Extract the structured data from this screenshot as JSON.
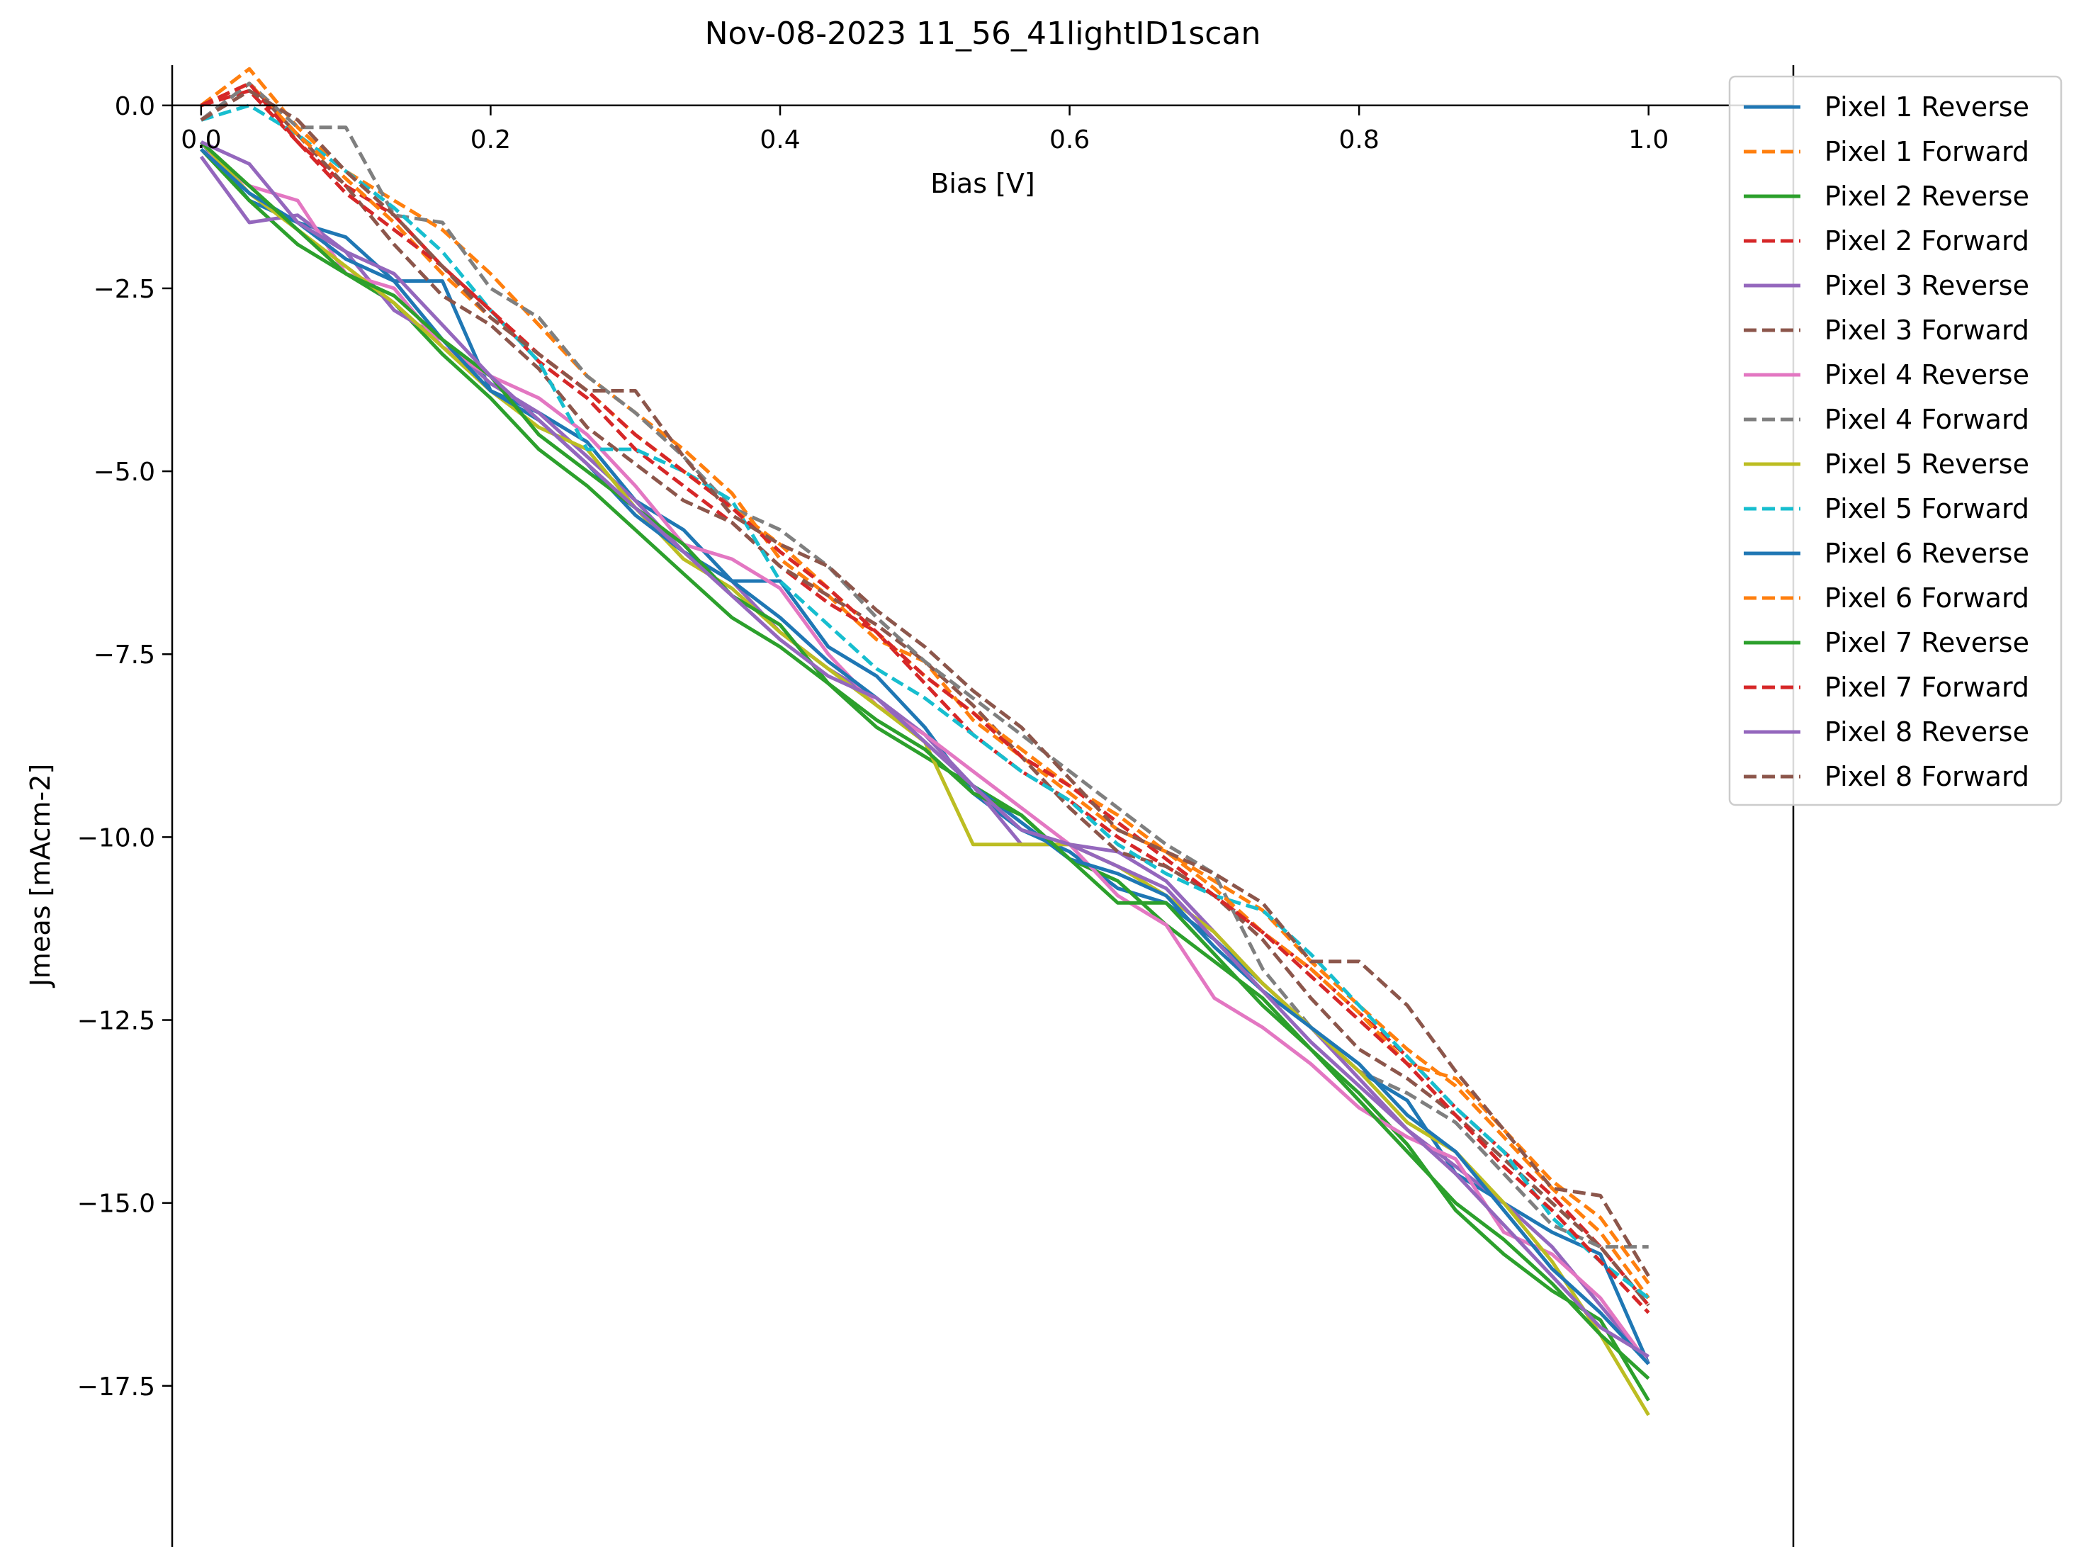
{
  "chart_data": {
    "type": "line",
    "title": "Nov-08-2023 11_56_41lightID1scan",
    "xlabel": "Bias [V]",
    "ylabel": "Jmeas [mAcm-2]",
    "xlim": [
      -0.02,
      1.1
    ],
    "ylim": [
      -19.7,
      0.55
    ],
    "x_ticks": [
      0.0,
      0.2,
      0.4,
      0.6,
      0.8,
      1.0
    ],
    "x_tick_labels": [
      "0.0",
      "0.2",
      "0.4",
      "0.6",
      "0.8",
      "1.0"
    ],
    "y_ticks": [
      0.0,
      -2.5,
      -5.0,
      -7.5,
      -10.0,
      -12.5,
      -15.0,
      -17.5
    ],
    "y_tick_labels": [
      "0.0",
      "−2.5",
      "−5.0",
      "−7.5",
      "−10.0",
      "−12.5",
      "−15.0",
      "−17.5"
    ],
    "x_axis_position": "y=0",
    "grid": false,
    "legend_position": "upper-right-outside",
    "x": [
      0.0,
      0.0333,
      0.0667,
      0.1,
      0.1333,
      0.1667,
      0.2,
      0.2333,
      0.2667,
      0.3,
      0.3333,
      0.3667,
      0.4,
      0.4333,
      0.4667,
      0.5,
      0.5333,
      0.5667,
      0.6,
      0.6333,
      0.6667,
      0.7,
      0.7333,
      0.7667,
      0.8,
      0.8333,
      0.8667,
      0.9,
      0.9333,
      0.9667,
      1.0
    ],
    "series": [
      {
        "name": "Pixel 1 Reverse",
        "color": "#1f77b4",
        "dash": "solid",
        "y": [
          -0.5,
          -1.3,
          -1.6,
          -1.8,
          -2.4,
          -2.4,
          -3.9,
          -4.2,
          -4.6,
          -5.4,
          -5.8,
          -6.5,
          -6.5,
          -7.4,
          -7.8,
          -8.5,
          -9.4,
          -9.9,
          -10.2,
          -10.7,
          -10.9,
          -11.4,
          -12.0,
          -12.6,
          -13.2,
          -13.6,
          -14.6,
          -15.0,
          -15.4,
          -15.7,
          -17.2
        ]
      },
      {
        "name": "Pixel 1 Forward",
        "color": "#ff7f0e",
        "dash": "dash",
        "y": [
          0.0,
          0.5,
          -0.3,
          -0.9,
          -1.3,
          -1.7,
          -2.3,
          -3.0,
          -3.7,
          -4.2,
          -4.7,
          -5.3,
          -6.2,
          -6.7,
          -7.3,
          -7.6,
          -8.4,
          -8.9,
          -9.4,
          -9.9,
          -10.2,
          -10.6,
          -11.0,
          -11.7,
          -12.3,
          -12.9,
          -13.4,
          -14.1,
          -14.8,
          -15.4,
          -16.3
        ]
      },
      {
        "name": "Pixel 2 Reverse",
        "color": "#2ca02c",
        "dash": "solid",
        "y": [
          -0.6,
          -1.3,
          -1.9,
          -2.3,
          -2.7,
          -3.4,
          -4.0,
          -4.7,
          -5.2,
          -5.8,
          -6.4,
          -7.0,
          -7.4,
          -7.9,
          -8.5,
          -8.9,
          -9.3,
          -9.7,
          -10.3,
          -10.6,
          -11.2,
          -11.7,
          -12.2,
          -12.9,
          -13.5,
          -14.2,
          -15.1,
          -15.7,
          -16.2,
          -16.6,
          -17.7
        ]
      },
      {
        "name": "Pixel 2 Forward",
        "color": "#d62728",
        "dash": "dash",
        "y": [
          0.0,
          0.2,
          -0.5,
          -1.1,
          -1.5,
          -2.2,
          -2.8,
          -3.5,
          -4.0,
          -4.7,
          -5.2,
          -5.7,
          -6.3,
          -6.8,
          -7.2,
          -7.9,
          -8.6,
          -9.1,
          -9.5,
          -10.0,
          -10.4,
          -10.8,
          -11.3,
          -11.8,
          -12.4,
          -13.0,
          -13.7,
          -14.3,
          -14.9,
          -15.6,
          -16.4
        ]
      },
      {
        "name": "Pixel 3 Reverse",
        "color": "#9467bd",
        "dash": "solid",
        "y": [
          -0.7,
          -1.6,
          -1.5,
          -2.0,
          -2.8,
          -3.2,
          -3.8,
          -4.2,
          -4.8,
          -5.4,
          -6.1,
          -6.5,
          -7.2,
          -7.7,
          -8.1,
          -8.6,
          -9.3,
          -10.1,
          -10.1,
          -10.2,
          -10.6,
          -11.3,
          -12.0,
          -12.6,
          -13.3,
          -14.0,
          -14.5,
          -15.0,
          -15.6,
          -16.4,
          -17.2
        ]
      },
      {
        "name": "Pixel 3 Forward",
        "color": "#8c564b",
        "dash": "dash",
        "y": [
          -0.2,
          0.3,
          -0.4,
          -1.1,
          -1.9,
          -2.6,
          -3.0,
          -3.6,
          -4.4,
          -4.9,
          -5.4,
          -5.7,
          -6.3,
          -6.7,
          -7.1,
          -7.6,
          -8.2,
          -8.9,
          -9.6,
          -10.2,
          -10.4,
          -10.8,
          -11.4,
          -12.2,
          -12.9,
          -13.3,
          -13.8,
          -14.4,
          -15.0,
          -15.6,
          -16.4
        ]
      },
      {
        "name": "Pixel 4 Reverse",
        "color": "#e377c2",
        "dash": "solid",
        "y": [
          -0.6,
          -1.1,
          -1.3,
          -2.3,
          -2.5,
          -3.3,
          -3.7,
          -4.0,
          -4.5,
          -5.2,
          -6.0,
          -6.2,
          -6.6,
          -7.5,
          -8.2,
          -8.6,
          -9.1,
          -9.6,
          -10.1,
          -10.8,
          -11.2,
          -12.2,
          -12.6,
          -13.1,
          -13.7,
          -14.1,
          -14.4,
          -15.4,
          -15.7,
          -16.3,
          -17.2
        ]
      },
      {
        "name": "Pixel 4 Forward",
        "color": "#7f7f7f",
        "dash": "dash",
        "y": [
          -0.2,
          0.3,
          -0.3,
          -0.3,
          -1.5,
          -1.6,
          -2.5,
          -2.9,
          -3.7,
          -4.2,
          -4.8,
          -5.5,
          -5.8,
          -6.3,
          -7.0,
          -7.6,
          -8.1,
          -8.6,
          -9.1,
          -9.6,
          -10.1,
          -10.5,
          -11.8,
          -12.6,
          -13.2,
          -13.5,
          -13.9,
          -14.6,
          -15.3,
          -15.6,
          -15.6
        ]
      },
      {
        "name": "Pixel 5 Reverse",
        "color": "#bcbd22",
        "dash": "solid",
        "y": [
          -0.5,
          -1.2,
          -1.7,
          -2.2,
          -2.7,
          -3.3,
          -3.9,
          -4.4,
          -4.7,
          -5.5,
          -6.2,
          -6.6,
          -7.2,
          -7.7,
          -8.2,
          -8.7,
          -10.1,
          -10.1,
          -10.1,
          -10.4,
          -10.8,
          -11.3,
          -12.0,
          -12.6,
          -13.2,
          -13.9,
          -14.3,
          -15.0,
          -15.8,
          -16.8,
          -17.9
        ]
      },
      {
        "name": "Pixel 5 Forward",
        "color": "#17becf",
        "dash": "dash",
        "y": [
          -0.2,
          0.0,
          -0.4,
          -0.9,
          -1.4,
          -2.0,
          -2.8,
          -3.5,
          -4.7,
          -4.7,
          -5.0,
          -5.4,
          -6.5,
          -7.1,
          -7.7,
          -8.1,
          -8.6,
          -9.1,
          -9.5,
          -10.1,
          -10.5,
          -10.8,
          -11.0,
          -11.6,
          -12.3,
          -13.0,
          -13.7,
          -14.3,
          -15.2,
          -15.8,
          -16.3
        ]
      },
      {
        "name": "Pixel 6 Reverse",
        "color": "#1f77b4",
        "dash": "solid",
        "y": [
          -0.6,
          -1.2,
          -1.6,
          -2.1,
          -2.4,
          -3.2,
          -3.9,
          -4.3,
          -4.9,
          -5.6,
          -6.1,
          -6.5,
          -7.0,
          -7.6,
          -8.1,
          -8.7,
          -9.3,
          -9.8,
          -10.3,
          -10.5,
          -10.8,
          -11.5,
          -12.1,
          -12.6,
          -13.1,
          -13.8,
          -14.3,
          -15.1,
          -15.9,
          -16.5,
          -17.2
        ]
      },
      {
        "name": "Pixel 6 Forward",
        "color": "#ff7f0e",
        "dash": "dash",
        "y": [
          0.0,
          0.3,
          -0.4,
          -1.0,
          -1.6,
          -2.3,
          -2.9,
          -3.4,
          -3.9,
          -4.5,
          -5.0,
          -5.5,
          -6.0,
          -6.6,
          -7.2,
          -7.8,
          -8.3,
          -8.8,
          -9.3,
          -9.7,
          -10.2,
          -10.7,
          -11.3,
          -11.8,
          -12.4,
          -13.1,
          -13.3,
          -14.0,
          -14.7,
          -15.2,
          -16.1
        ]
      },
      {
        "name": "Pixel 7 Reverse",
        "color": "#2ca02c",
        "dash": "solid",
        "y": [
          -0.5,
          -1.1,
          -1.7,
          -2.3,
          -2.6,
          -3.2,
          -3.7,
          -4.5,
          -5.0,
          -5.5,
          -6.0,
          -6.7,
          -7.1,
          -7.9,
          -8.4,
          -8.8,
          -9.4,
          -9.7,
          -10.3,
          -10.9,
          -10.9,
          -11.6,
          -12.3,
          -12.9,
          -13.6,
          -14.3,
          -15.0,
          -15.5,
          -16.1,
          -16.8,
          -17.4
        ]
      },
      {
        "name": "Pixel 7 Forward",
        "color": "#d62728",
        "dash": "dash",
        "y": [
          0.0,
          0.3,
          -0.5,
          -1.2,
          -1.7,
          -2.2,
          -2.8,
          -3.4,
          -3.9,
          -4.5,
          -5.0,
          -5.5,
          -6.1,
          -6.6,
          -7.2,
          -7.8,
          -8.3,
          -8.9,
          -9.3,
          -9.8,
          -10.3,
          -10.8,
          -11.3,
          -11.9,
          -12.5,
          -13.1,
          -13.8,
          -14.5,
          -15.1,
          -15.8,
          -16.5
        ]
      },
      {
        "name": "Pixel 8 Reverse",
        "color": "#9467bd",
        "dash": "solid",
        "y": [
          -0.5,
          -0.8,
          -1.6,
          -2.0,
          -2.3,
          -3.0,
          -3.7,
          -4.3,
          -4.9,
          -5.5,
          -6.1,
          -6.7,
          -7.3,
          -7.8,
          -8.1,
          -8.7,
          -9.3,
          -9.9,
          -10.1,
          -10.4,
          -10.7,
          -11.4,
          -12.1,
          -12.8,
          -13.4,
          -14.0,
          -14.6,
          -15.3,
          -16.0,
          -16.7,
          -17.1
        ]
      },
      {
        "name": "Pixel 8 Forward",
        "color": "#8c564b",
        "dash": "dash",
        "y": [
          -0.2,
          0.2,
          -0.2,
          -0.9,
          -1.5,
          -2.2,
          -2.9,
          -3.4,
          -3.9,
          -3.9,
          -4.8,
          -5.6,
          -6.0,
          -6.3,
          -6.9,
          -7.4,
          -8.0,
          -8.5,
          -9.2,
          -9.9,
          -10.2,
          -10.5,
          -10.9,
          -11.7,
          -11.7,
          -12.3,
          -13.2,
          -14.0,
          -14.8,
          -14.9,
          -16.0
        ]
      }
    ]
  }
}
